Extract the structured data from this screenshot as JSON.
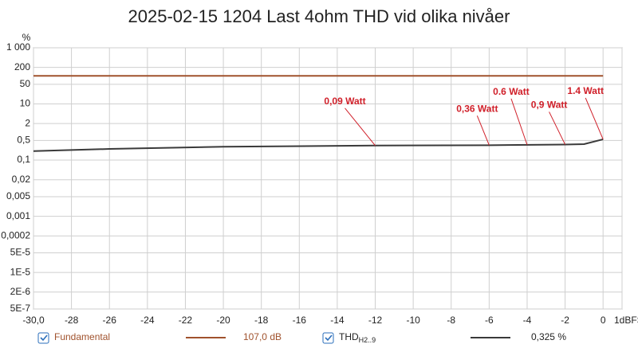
{
  "chart_data": {
    "type": "line",
    "title": "2025-02-15 1204 Last 4ohm THD vid olika nivåer",
    "y_unit": "%",
    "log_y": true,
    "grid": true,
    "xlim": [
      -30,
      1
    ],
    "ylim": [
      5e-07,
      1000
    ],
    "xticks": [
      {
        "value": -30,
        "label": "-30,0"
      },
      -28,
      -26,
      -24,
      -22,
      -20,
      -18,
      -16,
      -14,
      -12,
      -10,
      -8,
      -6,
      -4,
      -2,
      0,
      {
        "value": 1,
        "label": "1dBFS"
      }
    ],
    "yticks": [
      {
        "value": 1000,
        "label": "1 000"
      },
      200,
      50,
      10,
      2,
      {
        "value": 0.5,
        "label": "0,5"
      },
      {
        "value": 0.1,
        "label": "0,1"
      },
      {
        "value": 0.02,
        "label": "0,02"
      },
      {
        "value": 0.005,
        "label": "0,005"
      },
      {
        "value": 0.001,
        "label": "0,001"
      },
      {
        "value": 0.0002,
        "label": "0,0002"
      },
      {
        "value": 5e-05,
        "label": "5E-5"
      },
      {
        "value": 1e-05,
        "label": "1E-5"
      },
      {
        "value": 2e-06,
        "label": "2E-6"
      },
      {
        "value": 5e-07,
        "label": "5E-7"
      }
    ],
    "x": [
      -30,
      -26,
      -20,
      -12,
      -6,
      -2,
      -1,
      0
    ],
    "series": [
      {
        "name": "Fundamental",
        "color": "#a0522d",
        "readout": "107,0 dB",
        "values": [
          100,
          100,
          100,
          100,
          100,
          100,
          100,
          100
        ]
      },
      {
        "name": "THD",
        "subscript": "H2..9",
        "color": "#3a3a3a",
        "readout": "0,325 %",
        "values": [
          0.21,
          0.25,
          0.3,
          0.33,
          0.34,
          0.36,
          0.37,
          0.55
        ]
      }
    ],
    "annotation_color": "#d0202a",
    "annotations": [
      {
        "text": "0,09 Watt",
        "x": -12,
        "y": 0.33
      },
      {
        "text": "0,36 Watt",
        "x": -6,
        "y": 0.34
      },
      {
        "text": "0.6 Watt",
        "x": -4,
        "y": 0.35
      },
      {
        "text": "0,9 Watt",
        "x": -2,
        "y": 0.36
      },
      {
        "text": "1.4 Watt",
        "x": 0,
        "y": 0.55
      }
    ]
  }
}
